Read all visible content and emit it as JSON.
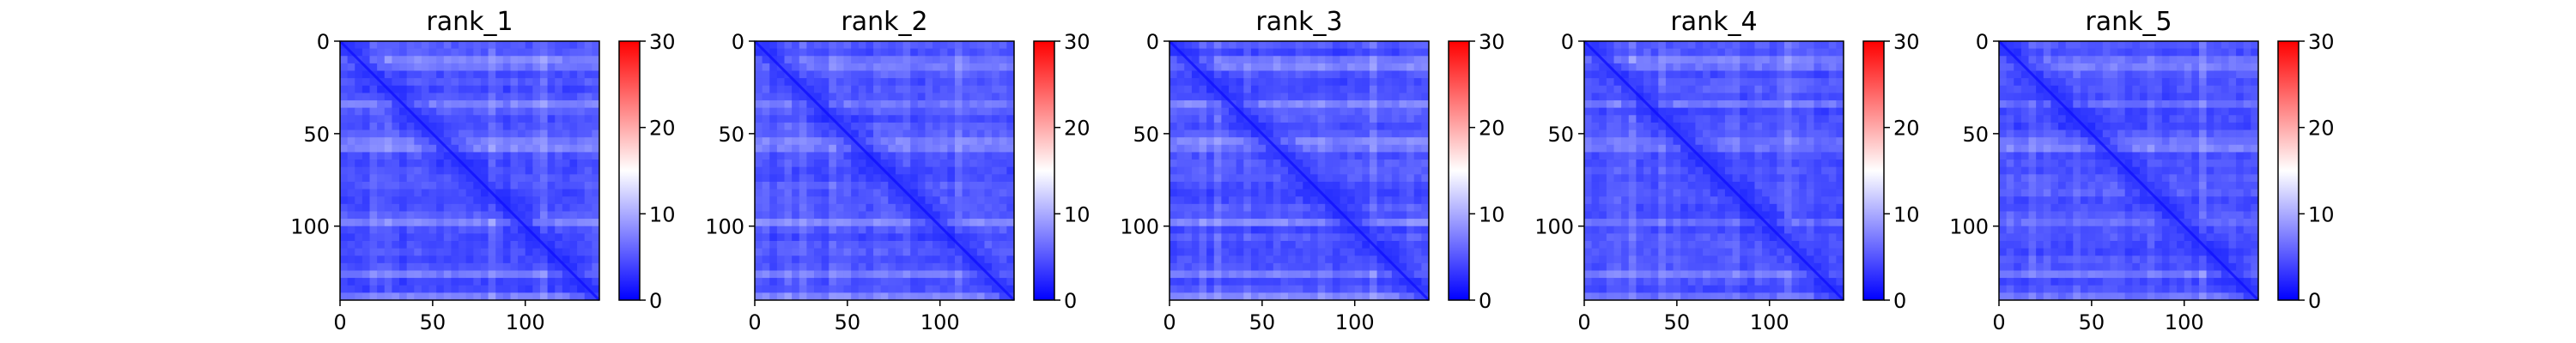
{
  "chart_data": [
    {
      "type": "heatmap",
      "title": "rank_1",
      "x_ticks": [
        0,
        50,
        100
      ],
      "y_ticks": [
        0,
        50,
        100
      ],
      "xlim": [
        0,
        140
      ],
      "ylim": [
        140,
        0
      ],
      "colorbar": {
        "cmap": "bwr",
        "vmin": 0,
        "vmax": 30,
        "ticks": [
          0,
          10,
          20,
          30
        ]
      }
    },
    {
      "type": "heatmap",
      "title": "rank_2",
      "x_ticks": [
        0,
        50,
        100
      ],
      "y_ticks": [
        0,
        50,
        100
      ],
      "xlim": [
        0,
        140
      ],
      "ylim": [
        140,
        0
      ],
      "colorbar": {
        "cmap": "bwr",
        "vmin": 0,
        "vmax": 30,
        "ticks": [
          0,
          10,
          20,
          30
        ]
      }
    },
    {
      "type": "heatmap",
      "title": "rank_3",
      "x_ticks": [
        0,
        50,
        100
      ],
      "y_ticks": [
        0,
        50,
        100
      ],
      "xlim": [
        0,
        140
      ],
      "ylim": [
        140,
        0
      ],
      "colorbar": {
        "cmap": "bwr",
        "vmin": 0,
        "vmax": 30,
        "ticks": [
          0,
          10,
          20,
          30
        ]
      }
    },
    {
      "type": "heatmap",
      "title": "rank_4",
      "x_ticks": [
        0,
        50,
        100
      ],
      "y_ticks": [
        0,
        50,
        100
      ],
      "xlim": [
        0,
        140
      ],
      "ylim": [
        140,
        0
      ],
      "colorbar": {
        "cmap": "bwr",
        "vmin": 0,
        "vmax": 30,
        "ticks": [
          0,
          10,
          20,
          30
        ]
      }
    },
    {
      "type": "heatmap",
      "title": "rank_5",
      "x_ticks": [
        0,
        50,
        100
      ],
      "y_ticks": [
        0,
        50,
        100
      ],
      "xlim": [
        0,
        140
      ],
      "ylim": [
        140,
        0
      ],
      "colorbar": {
        "cmap": "bwr",
        "vmin": 0,
        "vmax": 30,
        "ticks": [
          0,
          10,
          20,
          30
        ]
      }
    }
  ]
}
